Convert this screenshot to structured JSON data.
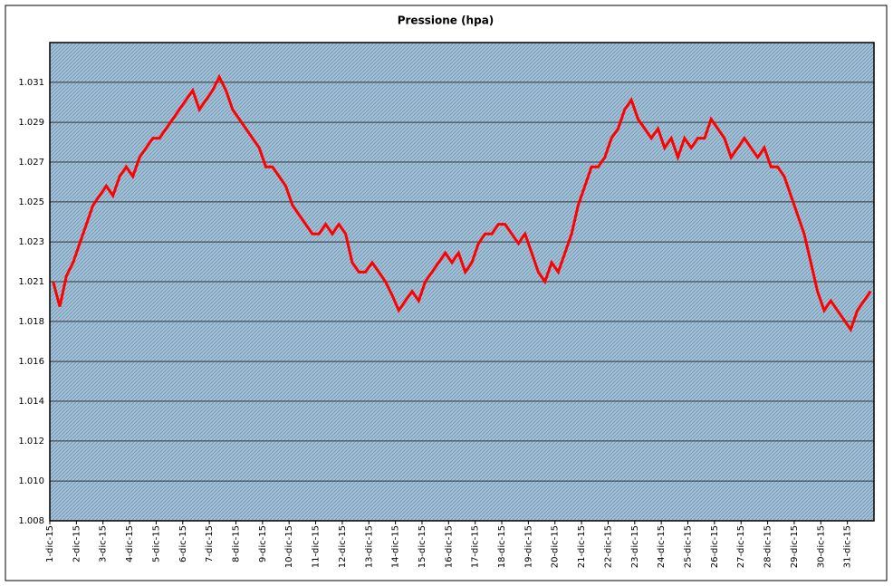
{
  "chart_data": {
    "type": "line",
    "title": "Pressione (hpa)",
    "categories": [
      "1-dic-15",
      null,
      null,
      null,
      "2-dic-15",
      null,
      null,
      null,
      "3-dic-15",
      null,
      null,
      null,
      "4-dic-15",
      null,
      null,
      null,
      "5-dic-15",
      null,
      null,
      null,
      "6-dic-15",
      null,
      null,
      null,
      "7-dic-15",
      null,
      null,
      null,
      "8-dic-15",
      null,
      null,
      null,
      "9-dic-15",
      null,
      null,
      null,
      "10-dic-15",
      null,
      null,
      null,
      "11-dic-15",
      null,
      null,
      null,
      "12-dic-15",
      null,
      null,
      null,
      "13-dic-15",
      null,
      null,
      null,
      "14-dic-15",
      null,
      null,
      null,
      "15-dic-15",
      null,
      null,
      null,
      "16-dic-15",
      null,
      null,
      null,
      "17-dic-15",
      null,
      null,
      null,
      "18-dic-15",
      null,
      null,
      null,
      "19-dic-15",
      null,
      null,
      null,
      "20-dic-15",
      null,
      null,
      null,
      "21-dic-15",
      null,
      null,
      null,
      "22-dic-15",
      null,
      null,
      null,
      "23-dic-15",
      null,
      null,
      null,
      "24-dic-15",
      null,
      null,
      null,
      "25-dic-15",
      null,
      null,
      null,
      "26-dic-15",
      null,
      null,
      null,
      "27-dic-15",
      null,
      null,
      null,
      "28-dic-15",
      null,
      null,
      null,
      "29-dic-15",
      null,
      null,
      null,
      "30-dic-15",
      null,
      null,
      null,
      "31-dic-15",
      null,
      null,
      null
    ],
    "values": [
      1020.5,
      1019.2,
      1020.8,
      1021.5,
      1022.5,
      1023.5,
      1024.5,
      1025,
      1025.5,
      1025,
      1026,
      1026.5,
      1026,
      1027,
      1027.5,
      1028,
      1028,
      1028.5,
      1029,
      1029.5,
      1030,
      1030.5,
      1029.5,
      1030,
      1030.5,
      1031.2,
      1030.5,
      1029.5,
      1029,
      1028.5,
      1028,
      1027.5,
      1026.5,
      1026.5,
      1026,
      1025.5,
      1024.5,
      1024,
      1023.5,
      1023,
      1023,
      1023.5,
      1023,
      1023.5,
      1023,
      1021.5,
      1021,
      1021,
      1021.5,
      1021,
      1020.5,
      1019.8,
      1019,
      1019.5,
      1020,
      1019.5,
      1020.5,
      1021,
      1021.5,
      1022,
      1021.5,
      1022,
      1021,
      1021.5,
      1022.5,
      1023,
      1023,
      1023.5,
      1023.5,
      1023,
      1022.5,
      1023,
      1022,
      1021,
      1020.5,
      1021.5,
      1021,
      1022,
      1023,
      1024.5,
      1025.5,
      1026.5,
      1026.5,
      1027,
      1028,
      1028.5,
      1029.5,
      1030,
      1029,
      1028.5,
      1028,
      1028.5,
      1027.5,
      1028,
      1027,
      1028,
      1027.5,
      1028,
      1028,
      1029,
      1028.5,
      1028,
      1027,
      1027.5,
      1028,
      1027.5,
      1027,
      1027.5,
      1026.5,
      1026.5,
      1026,
      1025,
      1024,
      1023,
      1021.5,
      1020,
      1019,
      1019.5,
      1019,
      1018.5,
      1018,
      1019,
      1019.5,
      1020
    ],
    "color": "#ff0000",
    "ylim": [
      1008,
      1033
    ],
    "yticks": [
      {
        "value": 1008,
        "label": "1.008"
      },
      {
        "value": 1010.08,
        "label": "1.010"
      },
      {
        "value": 1012.17,
        "label": "1.012"
      },
      {
        "value": 1014.25,
        "label": "1.014"
      },
      {
        "value": 1016.33,
        "label": "1.016"
      },
      {
        "value": 1018.42,
        "label": "1.018"
      },
      {
        "value": 1020.5,
        "label": "1.021"
      },
      {
        "value": 1022.58,
        "label": "1.023"
      },
      {
        "value": 1024.67,
        "label": "1.025"
      },
      {
        "value": 1026.75,
        "label": "1.027"
      },
      {
        "value": 1028.83,
        "label": "1.029"
      },
      {
        "value": 1030.92,
        "label": "1.031"
      }
    ],
    "grid": true
  }
}
